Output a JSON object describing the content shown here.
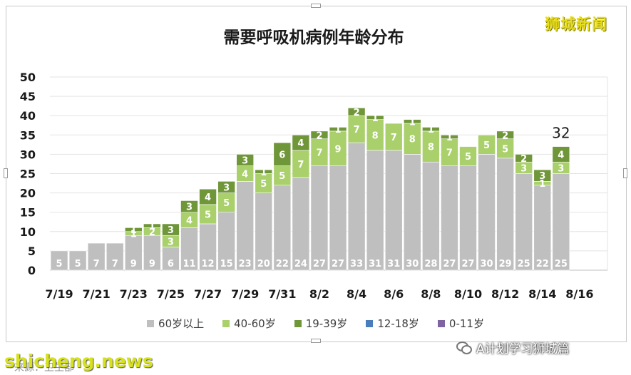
{
  "watermark": "狮城新闻",
  "bottom_watermark": "shicheng.news",
  "source_text": "来源：卫生部",
  "wechat_text": "A计划学习狮城篇",
  "chart_data": {
    "type": "bar",
    "stacked": true,
    "title": "需要呼吸机病例年龄分布",
    "xlabel": "",
    "ylabel": "",
    "ylim": [
      0,
      50
    ],
    "yticks": [
      0,
      5,
      10,
      15,
      20,
      25,
      30,
      35,
      40,
      45,
      50
    ],
    "grid": true,
    "legend_position": "bottom",
    "categories": [
      "7/19",
      "7/20",
      "7/21",
      "7/22",
      "7/23",
      "7/24",
      "7/25",
      "7/26",
      "7/27",
      "7/28",
      "7/29",
      "7/30",
      "7/31",
      "8/1",
      "8/2",
      "8/3",
      "8/4",
      "8/5",
      "8/6",
      "8/7",
      "8/8",
      "8/9",
      "8/10",
      "8/11",
      "8/12",
      "8/13",
      "8/14",
      "8/15"
    ],
    "xtick_labels": [
      "7/19",
      "7/21",
      "7/23",
      "7/25",
      "7/27",
      "7/29",
      "7/31",
      "8/2",
      "8/4",
      "8/6",
      "8/8",
      "8/10",
      "8/12",
      "8/14",
      "8/16"
    ],
    "series": [
      {
        "name": "60岁以上",
        "color": "#bfbfbf",
        "values": [
          5,
          5,
          7,
          7,
          9,
          9,
          6,
          11,
          12,
          15,
          23,
          20,
          22,
          24,
          27,
          27,
          33,
          31,
          31,
          30,
          28,
          27,
          27,
          30,
          29,
          25,
          22,
          25
        ]
      },
      {
        "name": "40-60岁",
        "color": "#a9d06b",
        "values": [
          0,
          0,
          0,
          0,
          1,
          2,
          3,
          4,
          5,
          5,
          4,
          5,
          5,
          7,
          7,
          9,
          7,
          8,
          7,
          8,
          8,
          7,
          5,
          5,
          5,
          3,
          1,
          3
        ]
      },
      {
        "name": "19-39岁",
        "color": "#70963a",
        "values": [
          0,
          0,
          0,
          0,
          1,
          1,
          3,
          3,
          4,
          3,
          3,
          1,
          6,
          4,
          2,
          1,
          2,
          1,
          0,
          1,
          1,
          1,
          0,
          0,
          2,
          2,
          3,
          4
        ]
      },
      {
        "name": "12-18岁",
        "color": "#4a7ebb",
        "values": [
          0,
          0,
          0,
          0,
          0,
          0,
          0,
          0,
          0,
          0,
          0,
          0,
          0,
          0,
          0,
          0,
          0,
          0,
          0,
          0,
          0,
          0,
          0,
          0,
          0,
          0,
          0,
          0
        ]
      },
      {
        "name": "0-11岁",
        "color": "#8064a2",
        "values": [
          0,
          0,
          0,
          0,
          0,
          0,
          0,
          0,
          0,
          0,
          0,
          0,
          0,
          0,
          0,
          0,
          0,
          0,
          0,
          0,
          0,
          0,
          0,
          0,
          0,
          0,
          0,
          0
        ]
      }
    ],
    "annotations": [
      {
        "category": "8/15",
        "text": "32"
      }
    ]
  }
}
